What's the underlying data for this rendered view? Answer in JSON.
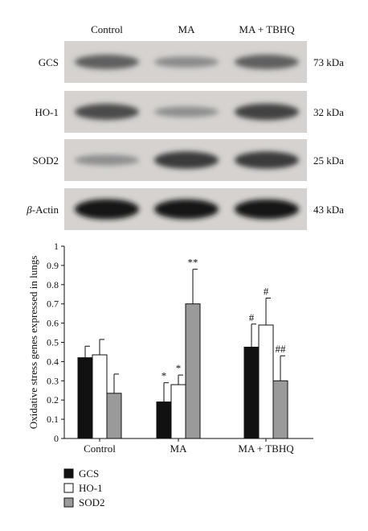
{
  "blot": {
    "lanes": [
      "Control",
      "MA",
      "MA + TBHQ"
    ],
    "rows": [
      {
        "label": "GCS",
        "italic_prefix": "",
        "weight": "73 kDa",
        "intensity": [
          0.55,
          0.32,
          0.55
        ]
      },
      {
        "label": "HO-1",
        "italic_prefix": "",
        "weight": "32 kDa",
        "intensity": [
          0.66,
          0.3,
          0.7
        ]
      },
      {
        "label": "SOD2",
        "italic_prefix": "",
        "weight": "25 kDa",
        "intensity": [
          0.3,
          0.75,
          0.75
        ]
      },
      {
        "label": "-Actin",
        "italic_prefix": "β",
        "weight": "43 kDa",
        "intensity": [
          0.95,
          0.92,
          0.92
        ]
      }
    ]
  },
  "chart_data": {
    "type": "bar",
    "categories": [
      "Control",
      "MA",
      "MA + TBHQ"
    ],
    "ylabel": "Oxidative stress genes expressed in lungs",
    "ylim": [
      0,
      1
    ],
    "yticks": [
      0,
      0.1,
      0.2,
      0.3,
      0.4,
      0.5,
      0.6,
      0.7,
      0.8,
      0.9,
      1
    ],
    "series": [
      {
        "name": "GCS",
        "color": "#111111",
        "values": [
          0.42,
          0.19,
          0.475
        ],
        "errors": [
          0.06,
          0.1,
          0.12
        ],
        "annotations": [
          "",
          "*",
          "#"
        ]
      },
      {
        "name": "HO-1",
        "color": "#ffffff",
        "values": [
          0.435,
          0.28,
          0.59
        ],
        "errors": [
          0.08,
          0.05,
          0.14
        ],
        "annotations": [
          "",
          "*",
          "#"
        ]
      },
      {
        "name": "SOD2",
        "color": "#9a9a9a",
        "values": [
          0.235,
          0.7,
          0.3
        ],
        "errors": [
          0.1,
          0.18,
          0.13
        ],
        "annotations": [
          "",
          "**",
          "##"
        ]
      }
    ],
    "legend_position": "bottom-left"
  }
}
